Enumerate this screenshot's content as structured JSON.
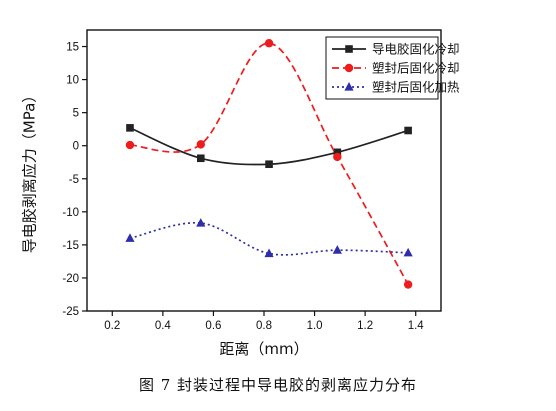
{
  "caption": "图 7   封装过程中导电胶的剥离应力分布",
  "chart_data": {
    "type": "line",
    "xlabel": "距离（mm）",
    "ylabel": "导电胶剥离应力（MPa）",
    "xlim": [
      0.1,
      1.5
    ],
    "ylim": [
      -25,
      17.5
    ],
    "xticks": [
      "0.2",
      "0.4",
      "0.6",
      "0.8",
      "1.0",
      "1.2",
      "1.4"
    ],
    "yticks": [
      "15",
      "10",
      "5",
      "0",
      "-5",
      "-10",
      "-15",
      "-20",
      "-25"
    ],
    "legend_position": "top-right",
    "series": [
      {
        "name": "导电胶固化冷却",
        "color": "#222222",
        "marker": "square",
        "dash": "solid",
        "x": [
          0.27,
          0.55,
          0.82,
          1.09,
          1.37
        ],
        "y": [
          2.7,
          -1.9,
          -2.8,
          -1.0,
          2.3
        ]
      },
      {
        "name": "塑封后固化冷却",
        "color": "#ee1c1c",
        "marker": "circle",
        "dash": "dashed",
        "x": [
          0.27,
          0.55,
          0.82,
          1.09,
          1.37
        ],
        "y": [
          0.1,
          0.2,
          15.5,
          -1.7,
          -21.0
        ]
      },
      {
        "name": "塑封后固化加热",
        "color": "#2e2ea8",
        "marker": "triangle",
        "dash": "dotted",
        "x": [
          0.27,
          0.55,
          0.82,
          1.09,
          1.37
        ],
        "y": [
          -14.0,
          -11.7,
          -16.3,
          -15.8,
          -16.2
        ]
      }
    ]
  }
}
